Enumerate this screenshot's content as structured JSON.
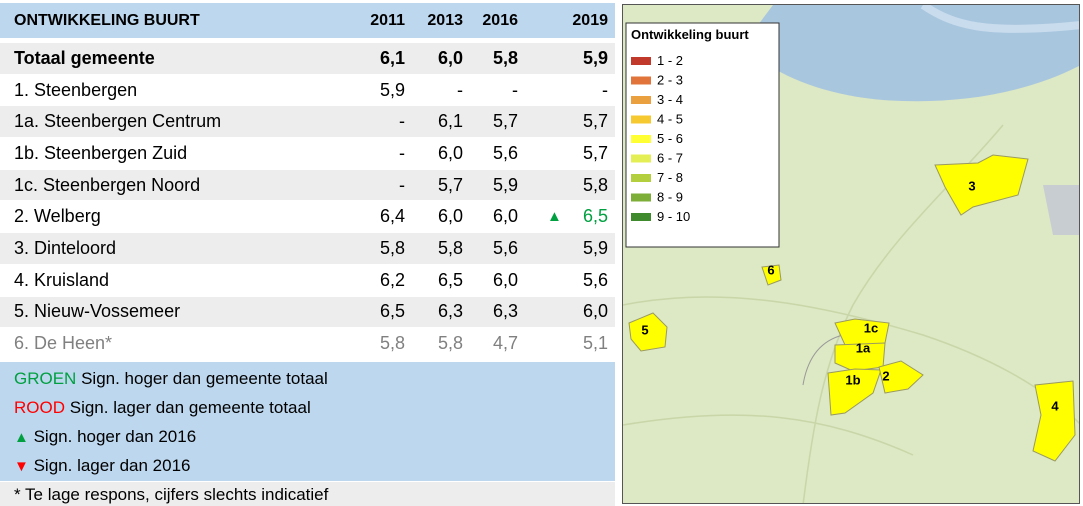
{
  "table": {
    "header": [
      "ONTWIKKELING BUURT",
      "2011",
      "2013",
      "2016",
      "2019"
    ],
    "rows": [
      {
        "name": "Totaal gemeente",
        "values": [
          "6,1",
          "6,0",
          "5,8",
          "5,9"
        ],
        "bold": true
      },
      {
        "name": "1. Steenbergen",
        "values": [
          "5,9",
          "-",
          "-",
          "-"
        ]
      },
      {
        "name": "1a. Steenbergen Centrum",
        "values": [
          "-",
          "6,1",
          "5,7",
          "5,7"
        ]
      },
      {
        "name": "1b. Steenbergen Zuid",
        "values": [
          "-",
          "6,0",
          "5,6",
          "5,7"
        ]
      },
      {
        "name": "1c. Steenbergen Noord",
        "values": [
          "-",
          "5,7",
          "5,9",
          "5,8"
        ]
      },
      {
        "name": "2. Welberg",
        "values": [
          "6,4",
          "6,0",
          "6,0",
          "6,5"
        ],
        "trend": "up"
      },
      {
        "name": "3. Dinteloord",
        "values": [
          "5,8",
          "5,8",
          "5,6",
          "5,9"
        ]
      },
      {
        "name": "4. Kruisland",
        "values": [
          "6,2",
          "6,5",
          "6,0",
          "5,6"
        ]
      },
      {
        "name": "5. Nieuw-Vossemeer",
        "values": [
          "6,5",
          "6,3",
          "6,3",
          "6,0"
        ]
      },
      {
        "name": "6. De Heen*",
        "values": [
          "5,8",
          "5,8",
          "4,7",
          "5,1"
        ],
        "color": "#808080"
      }
    ],
    "notes": [
      {
        "key": "GROEN",
        "text": "Sign. hoger dan gemeente totaal",
        "color": "#00a040"
      },
      {
        "key": "ROOD",
        "text": "Sign. lager dan gemeente totaal",
        "color": "#ff0000"
      },
      {
        "text": "Sign. hoger dan 2016",
        "icon": "up"
      },
      {
        "text": "Sign. lager dan 2016",
        "icon": "down"
      }
    ],
    "footnote": "* Te lage respons, cijfers slechts indicatief"
  },
  "map": {
    "legend": {
      "title": "Ontwikkeling buurt",
      "items": [
        {
          "label": "1 - 2",
          "color": "#c0392b"
        },
        {
          "label": "2 - 3",
          "color": "#e0743a"
        },
        {
          "label": "3 - 4",
          "color": "#eba040"
        },
        {
          "label": "4 - 5",
          "color": "#f7c930"
        },
        {
          "label": "5 - 6",
          "color": "#ffff33"
        },
        {
          "label": "6 - 7",
          "color": "#e4ef55"
        },
        {
          "label": "7 - 8",
          "color": "#b3cf3d"
        },
        {
          "label": "8 - 9",
          "color": "#7cae38"
        },
        {
          "label": "9 - 10",
          "color": "#3f8a2c"
        }
      ]
    },
    "labels": [
      "3",
      "6",
      "5",
      "1c",
      "1a",
      "1b",
      "2",
      "4"
    ]
  }
}
